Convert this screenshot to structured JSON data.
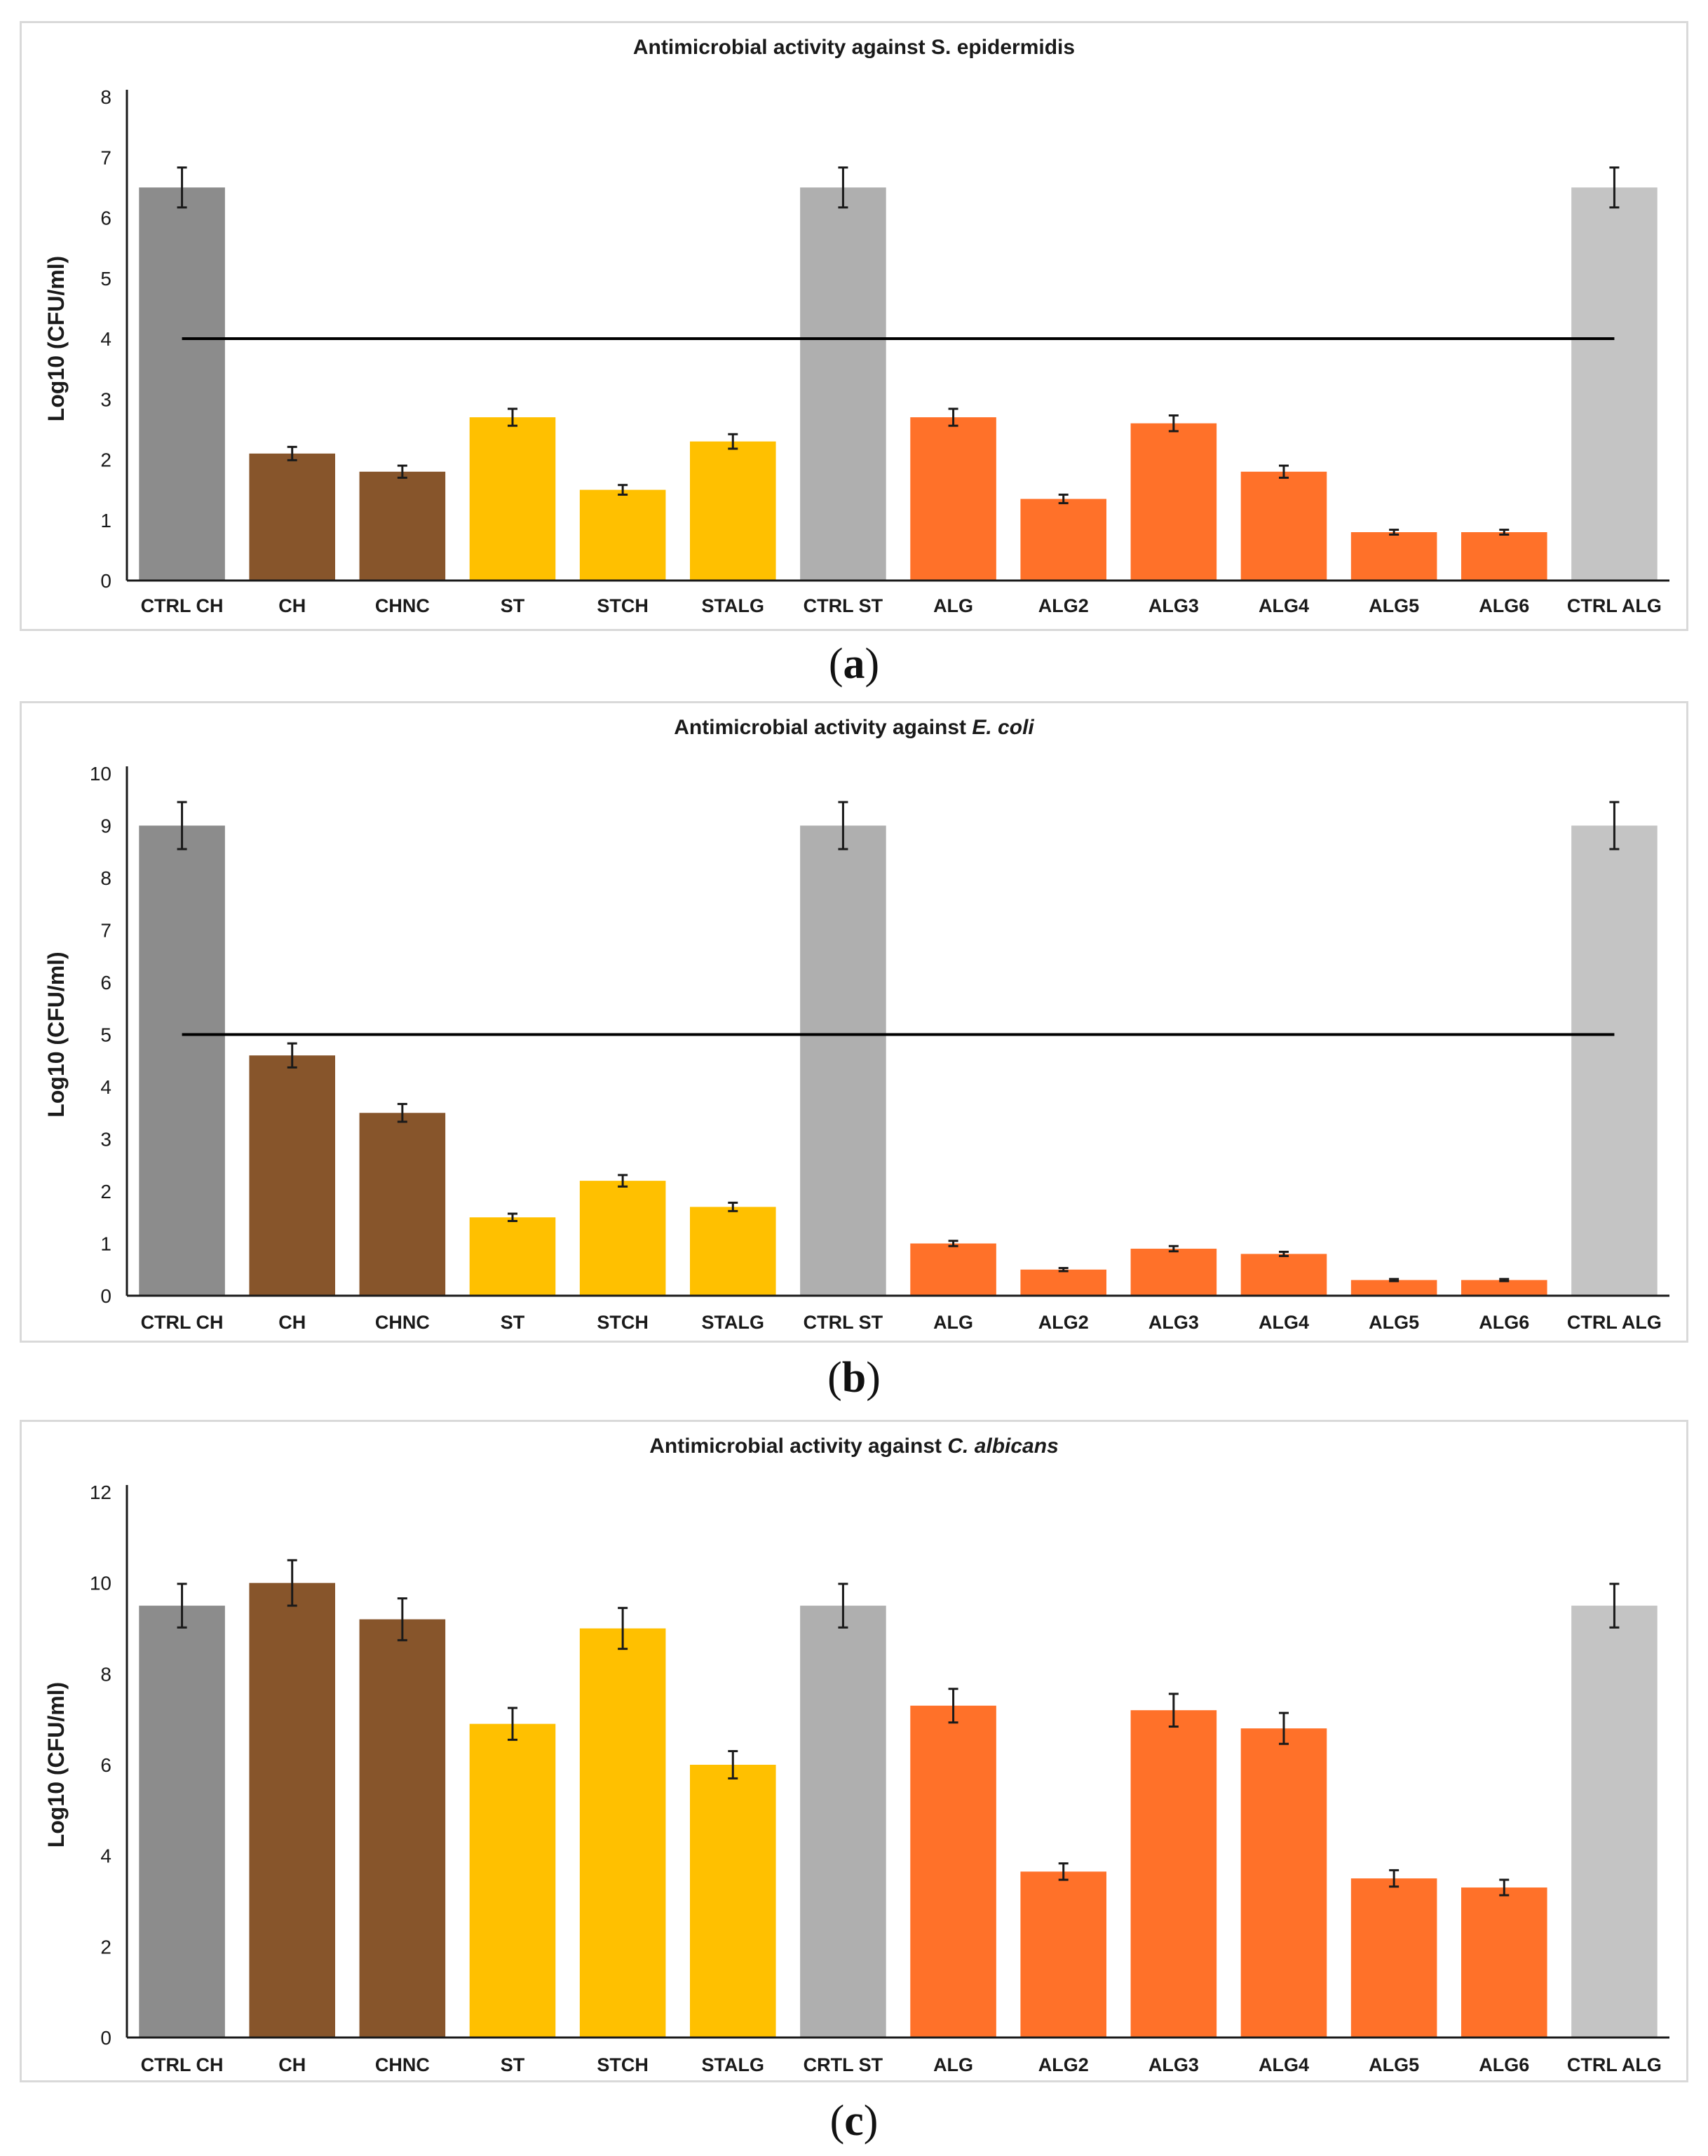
{
  "chart_data": [
    {
      "type": "bar",
      "title_prefix": "Antimicrobial activity against ",
      "title_organism": "S. epidermidis",
      "title_organism_italic": false,
      "ylabel": "Log10 (CFU/ml)",
      "ylim": [
        0,
        8
      ],
      "yticks": [
        0,
        1,
        2,
        3,
        4,
        5,
        6,
        7,
        8
      ],
      "categories": [
        "CTRL CH",
        "CH",
        "CHNC",
        "ST",
        "STCH",
        "STALG",
        "CTRL ST",
        "ALG",
        "ALG2",
        "ALG3",
        "ALG4",
        "ALG5",
        "ALG6",
        "CTRL ALG"
      ],
      "values": [
        6.5,
        2.1,
        1.8,
        2.7,
        1.5,
        2.3,
        6.5,
        2.7,
        1.35,
        2.6,
        1.8,
        0.8,
        0.8,
        6.5
      ],
      "errors": [
        0.33,
        0.11,
        0.1,
        0.14,
        0.08,
        0.12,
        0.33,
        0.14,
        0.07,
        0.13,
        0.1,
        0.04,
        0.04,
        0.33
      ],
      "colors": [
        "#8c8c8c",
        "#87552b",
        "#87552b",
        "#ffc000",
        "#ffc000",
        "#ffc000",
        "#afafaf",
        "#ff7129",
        "#ff7129",
        "#ff7129",
        "#ff7129",
        "#ff7129",
        "#ff7129",
        "#c4c4c4"
      ],
      "reference_line": 4,
      "caption": "a"
    },
    {
      "type": "bar",
      "title_prefix": "Antimicrobial activity against ",
      "title_organism": "E. coli",
      "title_organism_italic": true,
      "ylabel": "Log10 (CFU/ml)",
      "ylim": [
        0,
        10
      ],
      "yticks": [
        0,
        1,
        2,
        3,
        4,
        5,
        6,
        7,
        8,
        9,
        10
      ],
      "categories": [
        "CTRL CH",
        "CH",
        "CHNC",
        "ST",
        "STCH",
        "STALG",
        "CTRL ST",
        "ALG",
        "ALG2",
        "ALG3",
        "ALG4",
        "ALG5",
        "ALG6",
        "CTRL ALG"
      ],
      "values": [
        9,
        4.6,
        3.5,
        1.5,
        2.2,
        1.7,
        9,
        1.0,
        0.5,
        0.9,
        0.8,
        0.3,
        0.3,
        9
      ],
      "errors": [
        0.45,
        0.23,
        0.17,
        0.07,
        0.11,
        0.08,
        0.45,
        0.05,
        0.03,
        0.05,
        0.04,
        0.02,
        0.02,
        0.45
      ],
      "colors": [
        "#8c8c8c",
        "#87552b",
        "#87552b",
        "#ffc000",
        "#ffc000",
        "#ffc000",
        "#afafaf",
        "#ff7129",
        "#ff7129",
        "#ff7129",
        "#ff7129",
        "#ff7129",
        "#ff7129",
        "#c4c4c4"
      ],
      "reference_line": 5,
      "caption": "b"
    },
    {
      "type": "bar",
      "title_prefix": "Antimicrobial activity against ",
      "title_organism": "C. albicans",
      "title_organism_italic": true,
      "ylabel": "Log10 (CFU/ml)",
      "ylim": [
        0,
        12
      ],
      "yticks": [
        0,
        2,
        4,
        6,
        8,
        10,
        12
      ],
      "categories": [
        "CTRL CH",
        "CH",
        "CHNC",
        "ST",
        "STCH",
        "STALG",
        "CRTL ST",
        "ALG",
        "ALG2",
        "ALG3",
        "ALG4",
        "ALG5",
        "ALG6",
        "CTRL ALG"
      ],
      "values": [
        9.5,
        10,
        9.2,
        6.9,
        9,
        6,
        9.5,
        7.3,
        3.65,
        7.2,
        6.8,
        3.5,
        3.3,
        9.5
      ],
      "errors": [
        0.48,
        0.5,
        0.46,
        0.35,
        0.45,
        0.3,
        0.48,
        0.37,
        0.18,
        0.36,
        0.34,
        0.18,
        0.17,
        0.48
      ],
      "colors": [
        "#8c8c8c",
        "#87552b",
        "#87552b",
        "#ffc000",
        "#ffc000",
        "#ffc000",
        "#afafaf",
        "#ff7129",
        "#ff7129",
        "#ff7129",
        "#ff7129",
        "#ff7129",
        "#ff7129",
        "#c4c4c4"
      ],
      "reference_line": null,
      "caption": "c"
    }
  ]
}
